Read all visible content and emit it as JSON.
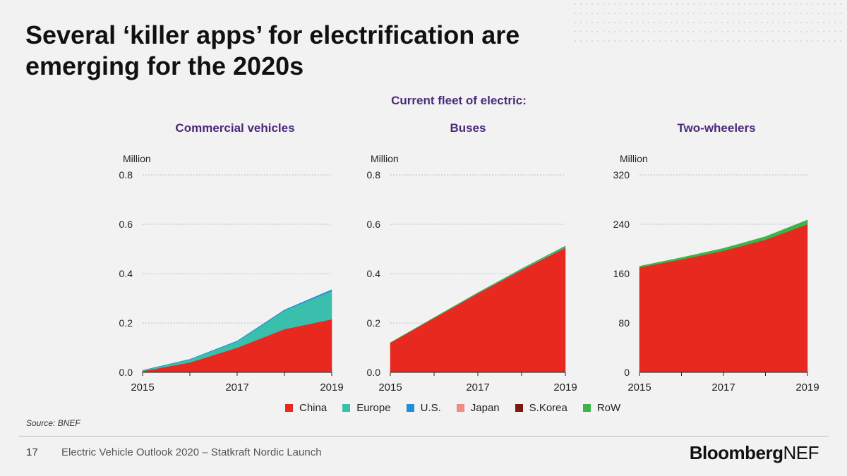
{
  "title": "Several ‘killer apps’ for electrification are emerging for the 2020s",
  "subtitle": "Current fleet of electric:",
  "source": "Source: BNEF",
  "footer": {
    "page_number": "17",
    "text": "Electric Vehicle Outlook 2020 – Statkraft Nordic Launch",
    "logo": "BloombergNEF"
  },
  "colors": {
    "China": "#e8291f",
    "Europe": "#3bbfad",
    "U.S.": "#1f8fd6",
    "Japan": "#f08a84",
    "S.Korea": "#7a1a10",
    "RoW": "#3cb44b"
  },
  "legend": [
    "China",
    "Europe",
    "U.S.",
    "Japan",
    "S.Korea",
    "RoW"
  ],
  "chart_data": [
    {
      "type": "area",
      "stacked": true,
      "title": "Commercial vehicles",
      "ylabel": "Million",
      "x": [
        2015,
        2016,
        2017,
        2018,
        2019
      ],
      "xticks": [
        2015,
        2017,
        2019
      ],
      "ylim": [
        0,
        0.8
      ],
      "yticks": [
        "0.0",
        "0.2",
        "0.4",
        "0.6",
        "0.8"
      ],
      "series": [
        {
          "name": "China",
          "values": [
            0.005,
            0.04,
            0.1,
            0.175,
            0.215
          ]
        },
        {
          "name": "Europe",
          "values": [
            0.003,
            0.012,
            0.025,
            0.075,
            0.115
          ]
        },
        {
          "name": "U.S.",
          "values": [
            0.0,
            0.001,
            0.002,
            0.003,
            0.005
          ]
        }
      ]
    },
    {
      "type": "area",
      "stacked": true,
      "title": "Buses",
      "ylabel": "Million",
      "x": [
        2015,
        2016,
        2017,
        2018,
        2019
      ],
      "xticks": [
        2015,
        2017,
        2019
      ],
      "ylim": [
        0,
        0.8
      ],
      "yticks": [
        "0.0",
        "0.2",
        "0.4",
        "0.6",
        "0.8"
      ],
      "series": [
        {
          "name": "China",
          "values": [
            0.12,
            0.22,
            0.32,
            0.415,
            0.505
          ]
        },
        {
          "name": "Europe",
          "values": [
            0.0,
            0.001,
            0.002,
            0.003,
            0.004
          ]
        },
        {
          "name": "RoW",
          "values": [
            0.0,
            0.001,
            0.001,
            0.002,
            0.003
          ]
        }
      ]
    },
    {
      "type": "area",
      "stacked": true,
      "title": "Two-wheelers",
      "ylabel": "Million",
      "x": [
        2015,
        2016,
        2017,
        2018,
        2019
      ],
      "xticks": [
        2015,
        2017,
        2019
      ],
      "ylim": [
        0,
        320
      ],
      "yticks": [
        "0",
        "80",
        "160",
        "240",
        "320"
      ],
      "series": [
        {
          "name": "China",
          "values": [
            170,
            183,
            197,
            215,
            240
          ]
        },
        {
          "name": "RoW",
          "values": [
            2,
            3,
            4,
            5,
            7
          ]
        }
      ]
    }
  ]
}
